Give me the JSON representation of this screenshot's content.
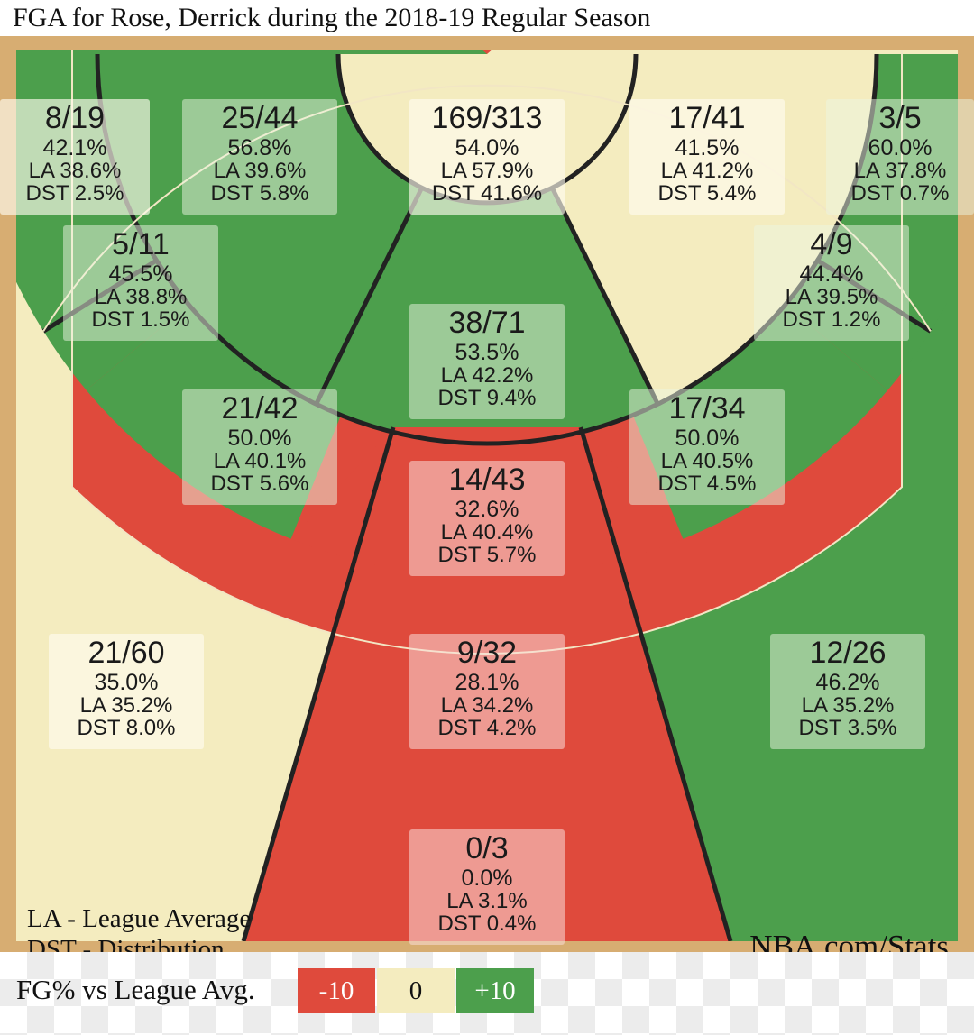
{
  "title": "FGA for Rose, Derrick during the 2018-19 Regular Season",
  "colors": {
    "above": "#4c9f4c",
    "neutral": "#f4ecbf",
    "below": "#df4a3c",
    "lines": "#222222"
  },
  "chart_data": {
    "type": "shot-zone chart",
    "zones": [
      {
        "id": "left-corner-3",
        "color": "neutral",
        "fg": "8/19",
        "pct": "42.1%",
        "la": "LA 38.6%",
        "dst": "DST 2.5%"
      },
      {
        "id": "left-mid-baseline",
        "color": "above",
        "fg": "25/44",
        "pct": "56.8%",
        "la": "LA 39.6%",
        "dst": "DST 5.8%"
      },
      {
        "id": "restricted-area",
        "color": "neutral",
        "fg": "169/313",
        "pct": "54.0%",
        "la": "LA 57.9%",
        "dst": "DST 41.6%"
      },
      {
        "id": "right-mid-baseline",
        "color": "neutral",
        "fg": "17/41",
        "pct": "41.5%",
        "la": "LA 41.2%",
        "dst": "DST 5.4%"
      },
      {
        "id": "right-corner-3",
        "color": "above",
        "fg": "3/5",
        "pct": "60.0%",
        "la": "LA 37.8%",
        "dst": "DST 0.7%"
      },
      {
        "id": "left-mid-wing",
        "color": "above",
        "fg": "5/11",
        "pct": "45.5%",
        "la": "LA 38.8%",
        "dst": "DST 1.5%"
      },
      {
        "id": "right-mid-wing",
        "color": "above",
        "fg": "4/9",
        "pct": "44.4%",
        "la": "LA 39.5%",
        "dst": "DST 1.2%"
      },
      {
        "id": "paint-non-ra",
        "color": "above",
        "fg": "38/71",
        "pct": "53.5%",
        "la": "LA 42.2%",
        "dst": "DST 9.4%"
      },
      {
        "id": "left-mid-elbow",
        "color": "above",
        "fg": "21/42",
        "pct": "50.0%",
        "la": "LA 40.1%",
        "dst": "DST 5.6%"
      },
      {
        "id": "right-mid-elbow",
        "color": "above",
        "fg": "17/34",
        "pct": "50.0%",
        "la": "LA 40.5%",
        "dst": "DST 4.5%"
      },
      {
        "id": "mid-top-key",
        "color": "below",
        "fg": "14/43",
        "pct": "32.6%",
        "la": "LA 40.4%",
        "dst": "DST 5.7%"
      },
      {
        "id": "left-wing-3",
        "color": "neutral",
        "fg": "21/60",
        "pct": "35.0%",
        "la": "LA 35.2%",
        "dst": "DST 8.0%"
      },
      {
        "id": "top-key-3",
        "color": "below",
        "fg": "9/32",
        "pct": "28.1%",
        "la": "LA 34.2%",
        "dst": "DST 4.2%"
      },
      {
        "id": "right-wing-3",
        "color": "above",
        "fg": "12/26",
        "pct": "46.2%",
        "la": "LA 35.2%",
        "dst": "DST 3.5%"
      },
      {
        "id": "backcourt",
        "color": "below",
        "fg": "0/3",
        "pct": "0.0%",
        "la": "LA 3.1%",
        "dst": "DST 0.4%"
      }
    ]
  },
  "legend_notes": {
    "la": "LA - League Average",
    "dst": "DST - Distribution"
  },
  "source": "NBA.com/Stats",
  "footer": {
    "label": "FG% vs League Avg.",
    "keys": [
      {
        "label": "-10",
        "color": "below"
      },
      {
        "label": "0",
        "color": "neutral"
      },
      {
        "label": "+10",
        "color": "above"
      }
    ]
  }
}
